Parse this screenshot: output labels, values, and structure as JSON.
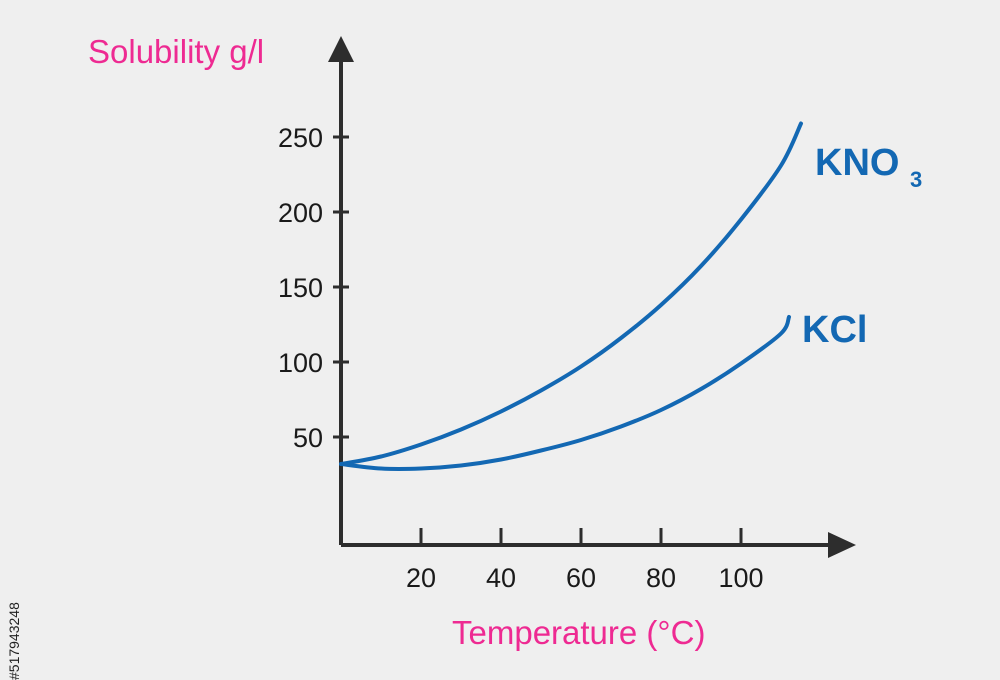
{
  "colors": {
    "axis": "#2d2d2d",
    "series": "#1368b3",
    "axis_title": "#ee2a92",
    "background": "#efefef"
  },
  "watermark_id": "#517943248",
  "chart_data": {
    "type": "line",
    "xlabel": "Temperature (°C)",
    "ylabel": "Solubility g/l",
    "xlim": [
      0,
      130
    ],
    "ylim": [
      -25,
      290
    ],
    "x_ticks": [
      20,
      40,
      60,
      80,
      100
    ],
    "y_ticks": [
      50,
      100,
      150,
      200,
      250
    ],
    "grid": false,
    "series": [
      {
        "name": "KNO",
        "name_subscript": "3",
        "x": [
          0,
          10,
          20,
          30,
          40,
          50,
          60,
          70,
          80,
          90,
          100,
          110,
          115
        ],
        "y": [
          32,
          37,
          45,
          55,
          67,
          81,
          97,
          116,
          138,
          164,
          195,
          231,
          259
        ]
      },
      {
        "name": "KCl",
        "x": [
          0,
          10,
          20,
          30,
          40,
          50,
          60,
          70,
          80,
          90,
          100,
          110,
          112
        ],
        "y": [
          32,
          29,
          29,
          31,
          35,
          41,
          48,
          57,
          68,
          82,
          99,
          119,
          130
        ]
      }
    ]
  }
}
